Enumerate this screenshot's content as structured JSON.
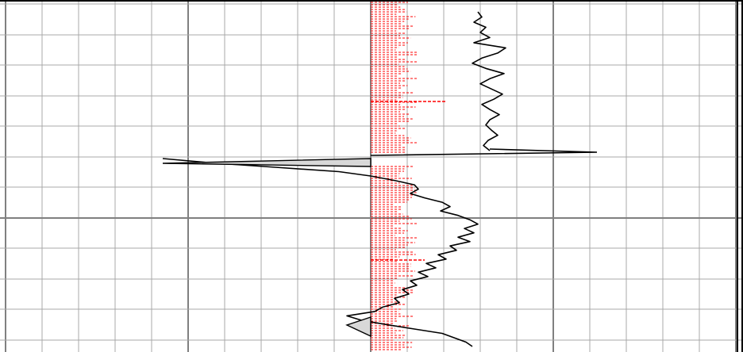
{
  "chart_data": {
    "type": "line",
    "title": "",
    "xlabel": "",
    "ylabel": "",
    "grid": true,
    "orientation": "vertical-track",
    "colors": {
      "background": "#ffffff",
      "grid_minor": "#a9a9a9",
      "grid_major": "#808080",
      "curve": "#000000",
      "bars": "#ff0000",
      "fill": "#d8d8d8",
      "frame": "#000000",
      "baseline": "#808080"
    },
    "bar_series": {
      "name": "",
      "style": "dashed",
      "base": 0,
      "segments": [
        {
          "y0": 0,
          "y1": 195,
          "amp": [
            30,
            60
          ]
        },
        {
          "y0": 210,
          "y1": 444,
          "amp": [
            28,
            60
          ]
        }
      ],
      "spikes": [
        {
          "y": 128,
          "value": 95
        },
        {
          "y": 328,
          "value": 68
        }
      ]
    },
    "curves": [
      {
        "name": "",
        "segments": [
          {
            "d": [
              135,
              140,
              130,
              145,
              138,
              150,
              130,
              170,
              160,
              140,
              128,
              145,
              168,
              150,
              138,
              152,
              166,
              155,
              140,
              150,
              162,
              150,
              145,
              152,
              160,
              148,
              142,
              150
            ],
            "y0": 15,
            "y1": 190
          }
        ],
        "spike": {
          "y": 192,
          "value": 285,
          "width": 4
        }
      },
      {
        "name": "",
        "segments": [
          {
            "d": [
              -262,
              -200,
              -120,
              -40,
              0,
              30,
              55,
              60,
              50,
              68,
              90,
              100,
              88,
              110,
              125,
              135,
              118,
              130,
              110,
              125,
              100,
              108,
              85,
              95,
              70,
              82,
              60,
              72,
              50,
              58,
              40,
              48,
              30,
              36,
              15,
              5,
              -30,
              -12,
              20,
              55,
              90,
              105,
              120,
              128
            ],
            "y0": 200,
            "y1": 437
          }
        ]
      }
    ],
    "fills": [
      {
        "y0": 200,
        "y1": 210,
        "side": "left"
      },
      {
        "y0": 400,
        "y1": 425,
        "side": "left"
      }
    ]
  }
}
